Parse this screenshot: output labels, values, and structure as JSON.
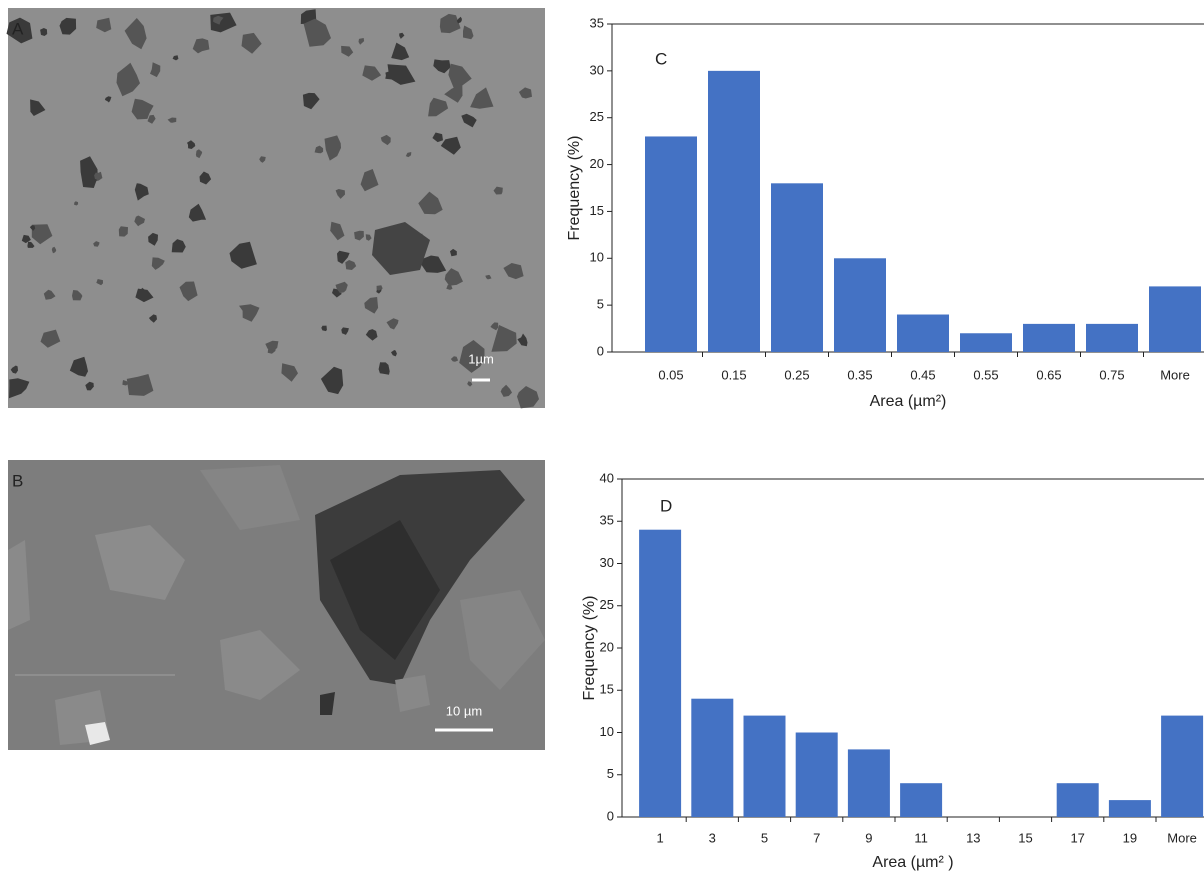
{
  "images": [
    {
      "label": "A",
      "scale_bar": "1µm"
    },
    {
      "label": "B",
      "scale_bar": "10 µm"
    }
  ],
  "chart_data": [
    {
      "type": "bar",
      "panel_label": "C",
      "y_label": "Frequency (%)",
      "x_label": "Area (µm²)",
      "categories": [
        "0.05",
        "0.15",
        "0.25",
        "0.35",
        "0.45",
        "0.55",
        "0.65",
        "0.75",
        "More"
      ],
      "values": [
        23,
        30,
        18,
        10,
        4,
        2,
        3,
        3,
        7
      ],
      "color": "#4472c4",
      "ylim": [
        0,
        35
      ],
      "yticks": [
        0,
        5,
        10,
        15,
        20,
        25,
        30,
        35
      ]
    },
    {
      "type": "bar",
      "panel_label": "D",
      "y_label": "Frequency (%)",
      "x_label": "Area (µm² )",
      "categories": [
        "1",
        "3",
        "5",
        "7",
        "9",
        "11",
        "13",
        "15",
        "17",
        "19",
        "More"
      ],
      "values": [
        34,
        14,
        12,
        10,
        8,
        4,
        0,
        0,
        4,
        2,
        12
      ],
      "color": "#4472c4",
      "ylim": [
        0,
        40
      ],
      "yticks": [
        0,
        5,
        10,
        15,
        20,
        25,
        30,
        35,
        40
      ]
    }
  ]
}
